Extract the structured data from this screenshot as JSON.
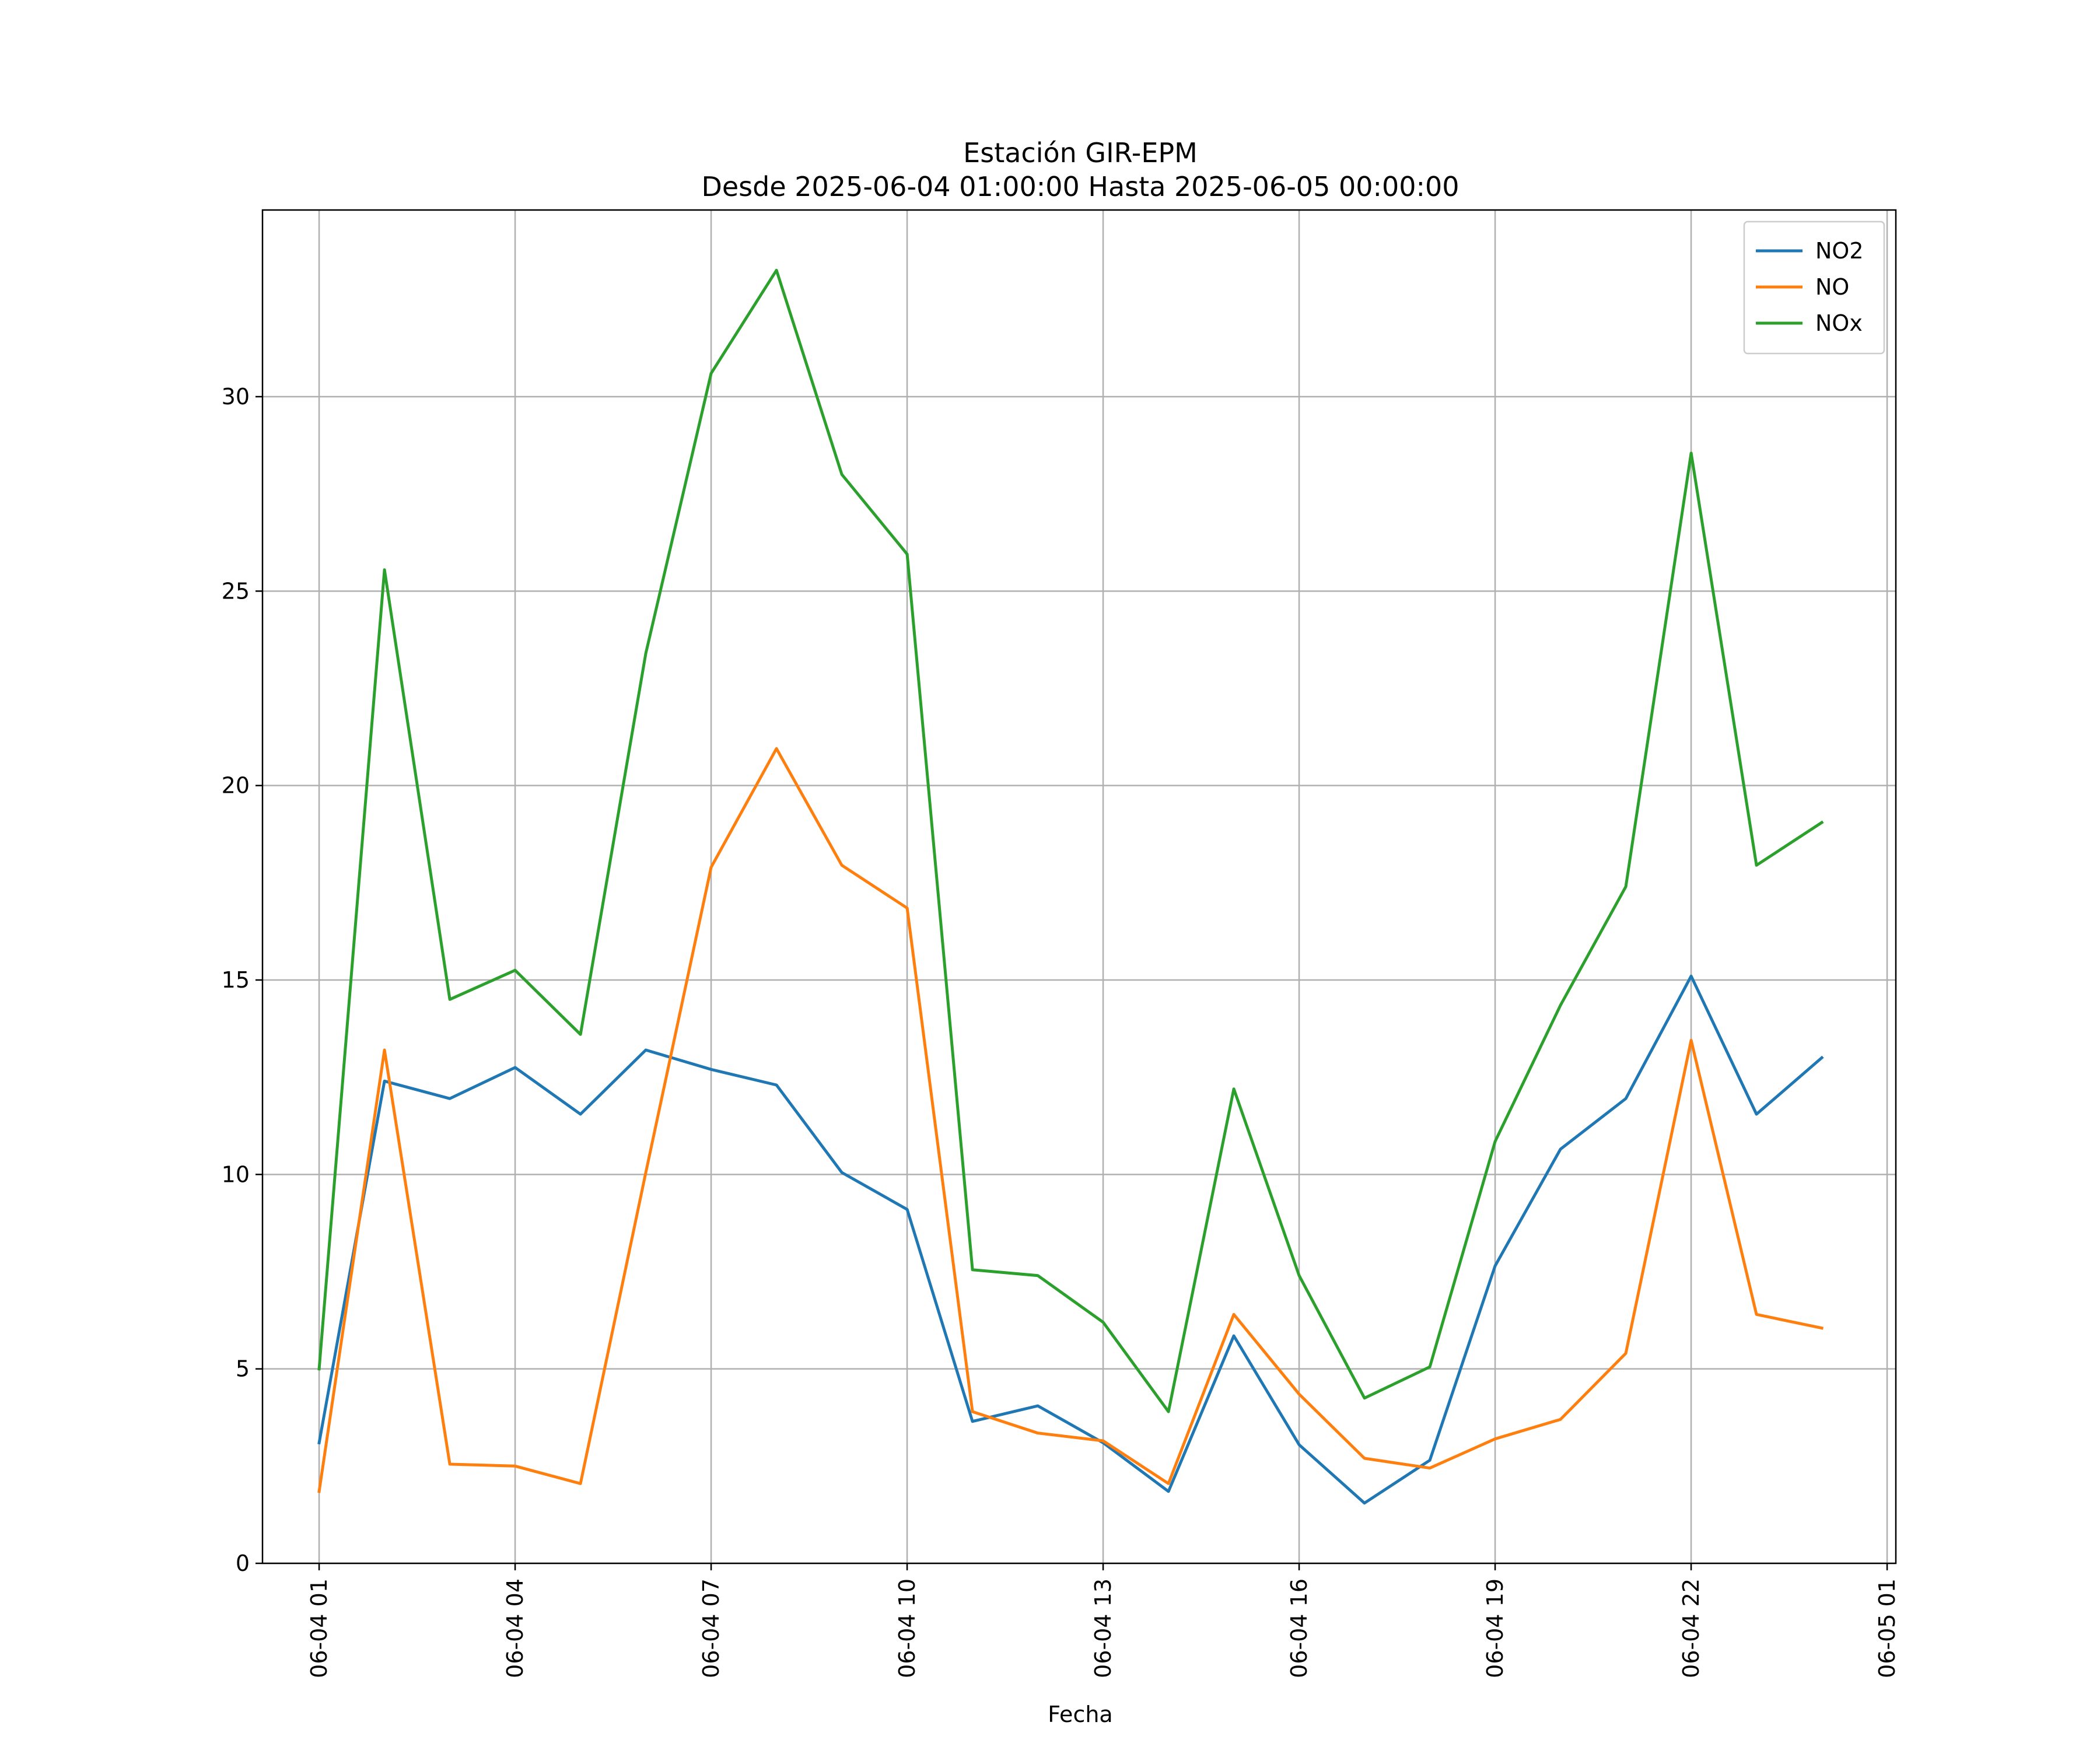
{
  "chart_data": {
    "type": "line",
    "title": "Estación GIR-EPM",
    "subtitle": "Desde 2025-06-04 01:00:00 Hasta 2025-06-05 00:00:00",
    "xlabel": "Fecha",
    "ylabel": "",
    "x": [
      "2025-06-04 01:00",
      "2025-06-04 02:00",
      "2025-06-04 03:00",
      "2025-06-04 04:00",
      "2025-06-04 05:00",
      "2025-06-04 06:00",
      "2025-06-04 07:00",
      "2025-06-04 08:00",
      "2025-06-04 09:00",
      "2025-06-04 10:00",
      "2025-06-04 11:00",
      "2025-06-04 12:00",
      "2025-06-04 13:00",
      "2025-06-04 14:00",
      "2025-06-04 15:00",
      "2025-06-04 16:00",
      "2025-06-04 17:00",
      "2025-06-04 18:00",
      "2025-06-04 19:00",
      "2025-06-04 20:00",
      "2025-06-04 21:00",
      "2025-06-04 22:00",
      "2025-06-04 23:00",
      "2025-06-05 00:00"
    ],
    "xlim": [
      "2025-06-04 00:08",
      "2025-06-05 01:08"
    ],
    "x_ticks": [
      "2025-06-04 01:00",
      "2025-06-04 04:00",
      "2025-06-04 07:00",
      "2025-06-04 10:00",
      "2025-06-04 13:00",
      "2025-06-04 16:00",
      "2025-06-04 19:00",
      "2025-06-04 22:00",
      "2025-06-05 01:00"
    ],
    "x_tick_labels": [
      "06-04 01",
      "06-04 04",
      "06-04 07",
      "06-04 10",
      "06-04 13",
      "06-04 16",
      "06-04 19",
      "06-04 22",
      "06-05 01"
    ],
    "ylim": [
      0,
      34.8
    ],
    "y_ticks": [
      0,
      5,
      10,
      15,
      20,
      25,
      30
    ],
    "y_tick_labels": [
      "0",
      "5",
      "10",
      "15",
      "20",
      "25",
      "30"
    ],
    "grid": true,
    "legend_position": "top-right",
    "series": [
      {
        "name": "NO2",
        "color": "#1f77b4",
        "values": [
          3.1,
          12.4,
          11.95,
          12.75,
          11.55,
          13.2,
          12.7,
          12.3,
          10.05,
          9.1,
          3.65,
          4.05,
          3.1,
          1.85,
          5.85,
          3.05,
          1.55,
          2.65,
          7.65,
          10.65,
          11.95,
          15.1,
          11.55,
          13.0
        ]
      },
      {
        "name": "NO",
        "color": "#ff7f0e",
        "values": [
          1.85,
          13.2,
          2.55,
          2.5,
          2.05,
          10.05,
          17.9,
          20.95,
          17.95,
          16.85,
          3.9,
          3.35,
          3.15,
          2.05,
          6.4,
          4.35,
          2.7,
          2.45,
          3.2,
          3.7,
          5.4,
          13.45,
          6.4,
          6.05
        ]
      },
      {
        "name": "NOx",
        "color": "#2ca02c",
        "values": [
          5.0,
          25.55,
          14.5,
          15.25,
          13.6,
          23.4,
          30.6,
          33.25,
          28.0,
          25.95,
          7.55,
          7.4,
          6.2,
          3.9,
          12.2,
          7.4,
          4.25,
          5.05,
          10.85,
          14.35,
          17.4,
          28.55,
          17.95,
          19.05
        ]
      }
    ]
  }
}
